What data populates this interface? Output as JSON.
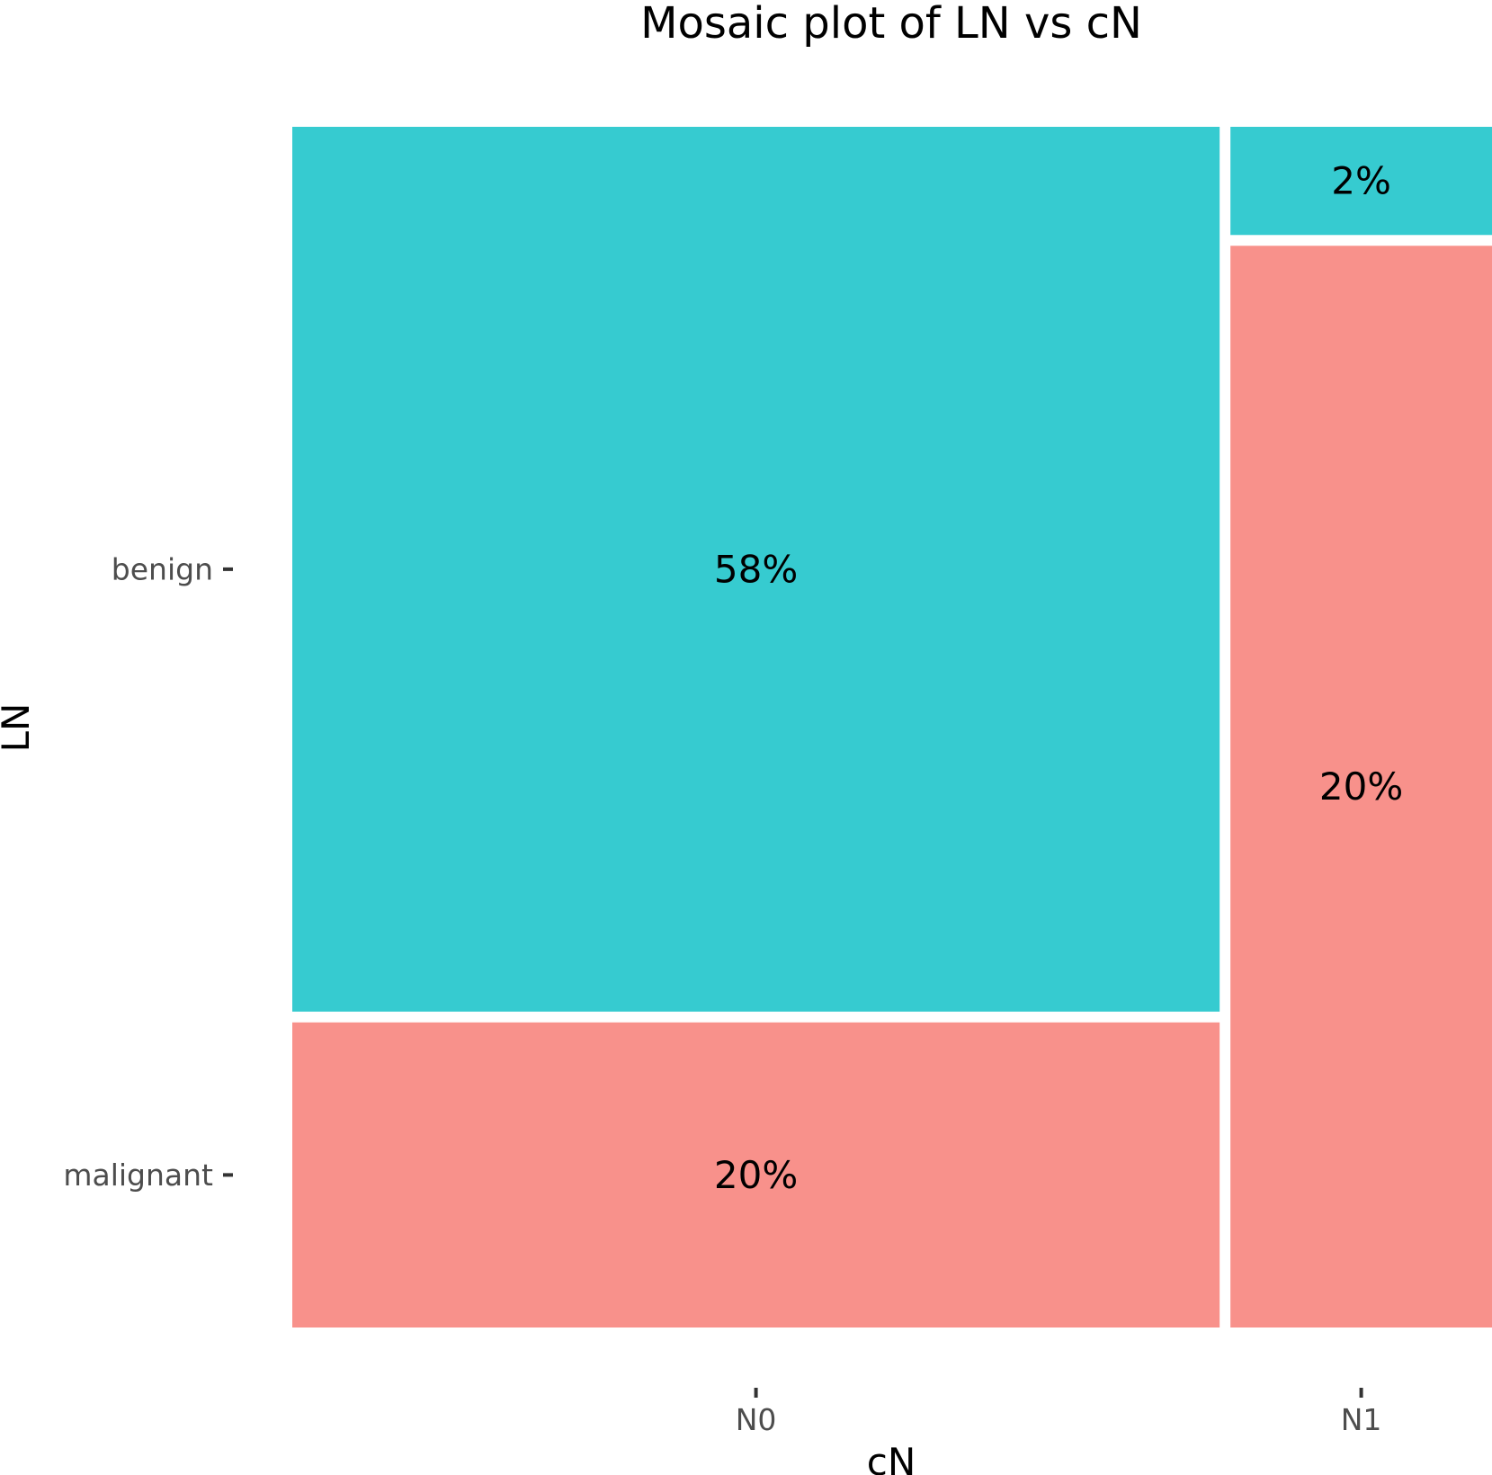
{
  "chart_data": {
    "type": "mosaic",
    "title": "Mosaic plot of LN vs cN",
    "xlabel": "cN",
    "ylabel": "LN",
    "x_categories": [
      "N0",
      "N1"
    ],
    "y_categories": [
      "benign",
      "malignant"
    ],
    "fill_colors": {
      "benign": "#36CBD0",
      "malignant": "#F8918B"
    },
    "cells": [
      {
        "x": "N0",
        "y": "benign",
        "percent": 58,
        "label": "58%"
      },
      {
        "x": "N0",
        "y": "malignant",
        "percent": 20,
        "label": "20%"
      },
      {
        "x": "N1",
        "y": "benign",
        "percent": 2,
        "label": "2%"
      },
      {
        "x": "N1",
        "y": "malignant",
        "percent": 20,
        "label": "20%"
      }
    ],
    "grid": false,
    "legend": "none"
  }
}
